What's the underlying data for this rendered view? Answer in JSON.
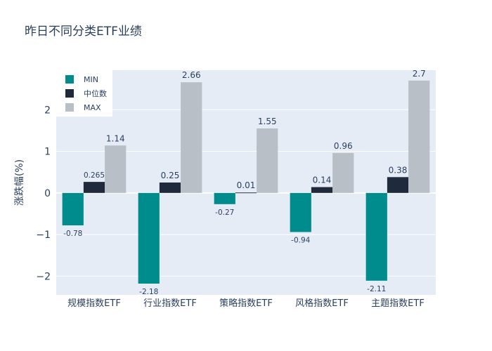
{
  "chart_data": {
    "type": "bar",
    "title": "昨日不同分类ETF业绩",
    "xlabel": "",
    "ylabel": "涨跌幅(%)",
    "ylim": [
      -2.45,
      2.95
    ],
    "yticks": [
      -2,
      -1,
      0,
      1,
      2
    ],
    "grid": true,
    "legend_position": "top-left",
    "categories": [
      "规模指数ETF",
      "行业指数ETF",
      "策略指数ETF",
      "风格指数ETF",
      "主题指数ETF"
    ],
    "series": [
      {
        "name": "MIN",
        "color": "#008c8c",
        "values": [
          -0.78,
          -2.18,
          -0.27,
          -0.94,
          -2.11
        ],
        "labels": [
          "-0.78",
          "-2.18",
          "-0.27",
          "-0.94",
          "-2.11"
        ]
      },
      {
        "name": "中位数",
        "color": "#1f2a3c",
        "values": [
          0.265,
          0.25,
          0.01,
          0.14,
          0.38
        ],
        "labels": [
          "0.265",
          "0.25",
          "0.01",
          "0.14",
          "0.38"
        ]
      },
      {
        "name": "MAX",
        "color": "#b8bfc7",
        "values": [
          1.14,
          2.66,
          1.55,
          0.96,
          2.7
        ],
        "labels": [
          "1.14",
          "2.66",
          "1.55",
          "0.96",
          "2.7"
        ]
      }
    ]
  },
  "colors": {
    "plot_bg": "#e5ecf6",
    "grid": "#ffffff",
    "text": "#2a3f5f"
  }
}
